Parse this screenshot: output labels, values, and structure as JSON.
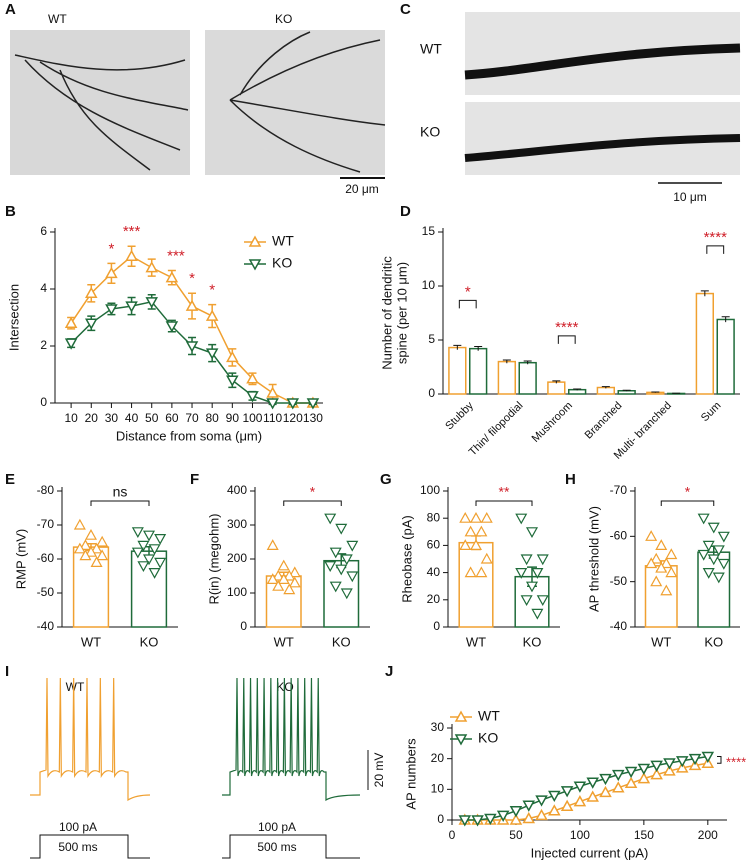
{
  "panel_labels": [
    "A",
    "B",
    "C",
    "D",
    "E",
    "F",
    "G",
    "H",
    "I",
    "J"
  ],
  "images": {
    "a_wt": "WT",
    "a_ko": "KO",
    "a_scale": "20 μm",
    "c_wt": "WT",
    "c_ko": "KO",
    "c_scale": "10 μm"
  },
  "traces": {
    "wt": "WT",
    "ko": "KO",
    "wt_current": "100 pA",
    "ko_current": "100 pA",
    "wt_time": "500 ms",
    "ko_time": "500 ms",
    "scale": "20 mV"
  },
  "chart_data": [
    {
      "type": "line",
      "xlabel": "Distance from soma (μm)",
      "ylabel": "Intersection",
      "x": [
        10,
        20,
        30,
        40,
        50,
        60,
        70,
        80,
        90,
        100,
        110,
        120,
        130
      ],
      "series": [
        {
          "name": "WT",
          "color": "#f0a030",
          "values": [
            2.8,
            3.85,
            4.55,
            5.15,
            4.75,
            4.4,
            3.4,
            3.05,
            1.6,
            0.85,
            0.35,
            0,
            0
          ],
          "errors": [
            0.2,
            0.3,
            0.35,
            0.35,
            0.3,
            0.25,
            0.45,
            0.4,
            0.3,
            0.2,
            0.3,
            0.1,
            0.1
          ]
        },
        {
          "name": "KO",
          "color": "#1f6b3a",
          "values": [
            2.1,
            2.8,
            3.3,
            3.4,
            3.55,
            2.7,
            2.0,
            1.75,
            0.8,
            0.25,
            0,
            0,
            0
          ],
          "errors": [
            0.15,
            0.25,
            0.2,
            0.3,
            0.25,
            0.2,
            0.3,
            0.3,
            0.25,
            0.15,
            0.05,
            0.05,
            0.05
          ]
        }
      ],
      "annotations": [
        {
          "x": 30,
          "text": "*"
        },
        {
          "x": 40,
          "text": "***"
        },
        {
          "x": 62,
          "text": "***"
        },
        {
          "x": 70,
          "text": "*"
        },
        {
          "x": 80,
          "text": "*"
        }
      ],
      "xlim": [
        2,
        135
      ],
      "xticks": [
        10,
        20,
        30,
        40,
        50,
        60,
        70,
        80,
        90,
        100,
        110,
        120,
        130
      ],
      "ylim": [
        0,
        6
      ],
      "yticks": [
        0,
        2,
        4,
        6
      ]
    },
    {
      "type": "bar",
      "ylabel": [
        "Number of dendritic",
        "spine (per 10 μm)"
      ],
      "categories": [
        "Stubby",
        "Thin/ filopodial",
        "Mushroom",
        "Branched",
        "Multi- branched",
        "Sum"
      ],
      "series": [
        {
          "name": "WT",
          "color": "#f0a030",
          "values": [
            4.3,
            3.0,
            1.1,
            0.6,
            0.15,
            9.3
          ],
          "errors": [
            0.2,
            0.15,
            0.12,
            0.08,
            0.04,
            0.25
          ]
        },
        {
          "name": "KO",
          "color": "#1f6b3a",
          "values": [
            4.2,
            2.9,
            0.4,
            0.3,
            0.05,
            6.9
          ],
          "errors": [
            0.2,
            0.15,
            0.06,
            0.05,
            0.02,
            0.25
          ]
        }
      ],
      "significance": [
        {
          "category": "Stubby",
          "text": "*"
        },
        {
          "category": "Mushroom",
          "text": "****"
        },
        {
          "category": "Sum",
          "text": "****"
        }
      ],
      "ylim": [
        0,
        15
      ],
      "yticks": [
        0,
        5,
        10,
        15
      ]
    },
    {
      "type": "bar",
      "ylabel": "RMP (mV)",
      "categories": [
        "WT",
        "KO"
      ],
      "colors": [
        "#f0a030",
        "#1f6b3a"
      ],
      "values": [
        -63.5,
        -62.3
      ],
      "errors": [
        1,
        1.3
      ],
      "points": [
        [
          -70,
          -67,
          -65,
          -64,
          -63,
          -63,
          -62,
          -61,
          -61,
          -59
        ],
        [
          -68,
          -67,
          -66,
          -64,
          -63,
          -62,
          -60,
          -59,
          -58,
          -56
        ]
      ],
      "significance": "ns",
      "ylim": [
        -40,
        -80
      ],
      "yticks": [
        -40,
        -50,
        -60,
        -70,
        -80
      ]
    },
    {
      "type": "bar",
      "ylabel": "R(in) (megohm)",
      "categories": [
        "WT",
        "KO"
      ],
      "colors": [
        "#f0a030",
        "#1f6b3a"
      ],
      "values": [
        150,
        195
      ],
      "errors": [
        11,
        20
      ],
      "points": [
        [
          240,
          180,
          160,
          150,
          150,
          140,
          140,
          130,
          120,
          110
        ],
        [
          320,
          290,
          240,
          220,
          200,
          180,
          170,
          150,
          120,
          100
        ]
      ],
      "significance": "*",
      "ylim": [
        0,
        400
      ],
      "yticks": [
        0,
        100,
        200,
        300,
        400
      ]
    },
    {
      "type": "bar",
      "ylabel": "Rheobase (pA)",
      "categories": [
        "WT",
        "KO"
      ],
      "colors": [
        "#f0a030",
        "#1f6b3a"
      ],
      "values": [
        62,
        37
      ],
      "errors": [
        5,
        7
      ],
      "points": [
        [
          80,
          80,
          80,
          70,
          70,
          60,
          60,
          50,
          40,
          40
        ],
        [
          80,
          70,
          50,
          50,
          40,
          40,
          30,
          20,
          20,
          10
        ]
      ],
      "significance": "**",
      "ylim": [
        0,
        100
      ],
      "yticks": [
        0,
        20,
        40,
        60,
        80,
        100
      ]
    },
    {
      "type": "bar",
      "ylabel": "AP threshold (mV)",
      "categories": [
        "WT",
        "KO"
      ],
      "colors": [
        "#f0a030",
        "#1f6b3a"
      ],
      "values": [
        -53.5,
        -56.5
      ],
      "errors": [
        1.1,
        1.3
      ],
      "points": [
        [
          -60,
          -58,
          -56,
          -55,
          -54,
          -54,
          -53,
          -52,
          -50,
          -48
        ],
        [
          -64,
          -62,
          -60,
          -58,
          -57,
          -56,
          -55,
          -54,
          -52,
          -51
        ]
      ],
      "significance": "*",
      "ylim": [
        -40,
        -70
      ],
      "yticks": [
        -40,
        -50,
        -60,
        -70
      ]
    },
    {
      "type": "line",
      "xlabel": "Injected current (pA)",
      "ylabel": "AP numbers",
      "x": [
        10,
        20,
        30,
        40,
        50,
        60,
        70,
        80,
        90,
        100,
        110,
        120,
        130,
        140,
        150,
        160,
        170,
        180,
        190,
        200
      ],
      "series": [
        {
          "name": "WT",
          "color": "#f0a030",
          "values": [
            0,
            0,
            0,
            0,
            0,
            0.5,
            1.5,
            3,
            4.5,
            6,
            7.5,
            9,
            10.5,
            12,
            13.5,
            14.8,
            16,
            17,
            17.8,
            18.5
          ]
        },
        {
          "name": "KO",
          "color": "#1f6b3a",
          "values": [
            0,
            0,
            0.5,
            1.5,
            3,
            4.8,
            6.5,
            8,
            9.5,
            11,
            12.3,
            13.5,
            14.8,
            15.8,
            16.8,
            17.8,
            18.6,
            19.3,
            20,
            20.7
          ]
        }
      ],
      "annotation": "****",
      "xlim": [
        0,
        215
      ],
      "xticks": [
        0,
        50,
        100,
        150,
        200
      ],
      "ylim": [
        0,
        30
      ],
      "yticks": [
        0,
        10,
        20,
        30
      ]
    }
  ]
}
